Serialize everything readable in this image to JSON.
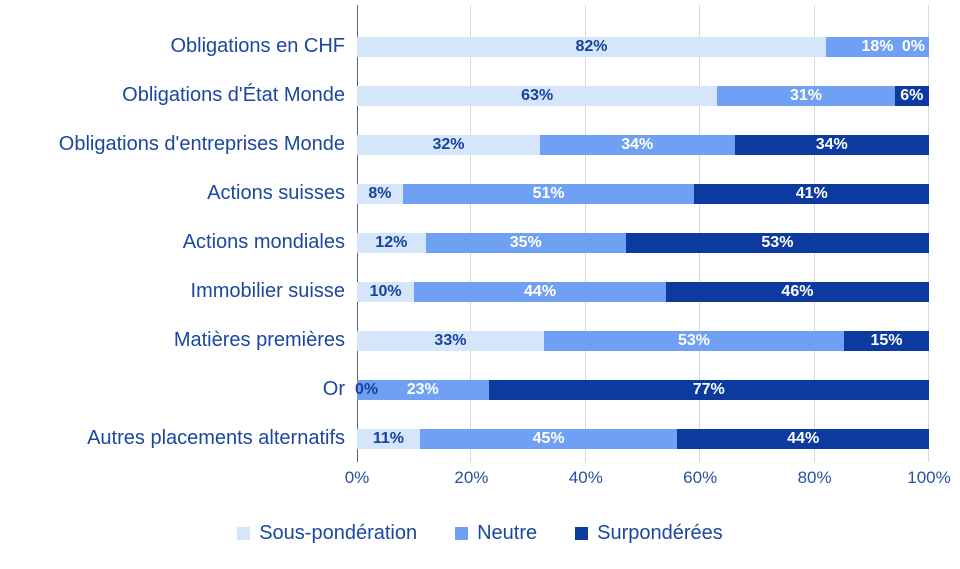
{
  "chart_data": {
    "type": "bar",
    "subtype": "horizontal-stacked",
    "categories": [
      "Obligations en CHF",
      "Obligations d'État Monde",
      "Obligations d'entreprises Monde",
      "Actions suisses",
      "Actions mondiales",
      "Immobilier suisse",
      "Matières premières",
      "Or",
      "Autres placements alternatifs"
    ],
    "series": [
      {
        "name": "Sous-pondération",
        "color": "#d6e6fa",
        "label_color": "#16419c",
        "values": [
          82,
          63,
          32,
          8,
          12,
          10,
          33,
          0,
          11
        ]
      },
      {
        "name": "Neutre",
        "color": "#6fa0f3",
        "label_color": "#ffffff",
        "values": [
          18,
          31,
          34,
          51,
          35,
          44,
          53,
          23,
          45
        ]
      },
      {
        "name": "Surpondérées",
        "color": "#0d3a9e",
        "label_color": "#ffffff",
        "values": [
          0,
          6,
          34,
          41,
          53,
          46,
          15,
          77,
          44
        ]
      }
    ],
    "value_suffix": "%",
    "x_ticks": [
      "0%",
      "20%",
      "40%",
      "60%",
      "80%",
      "100%"
    ],
    "xlim": [
      0,
      100
    ],
    "grid": "vertical",
    "legend_position": "bottom",
    "colors": {
      "label_text": "#1c47a0",
      "axis_tick_text": "#2a50a5",
      "axis_line": "#5a6672",
      "gridline": "#d9d9d9",
      "background": "#ffffff"
    }
  }
}
